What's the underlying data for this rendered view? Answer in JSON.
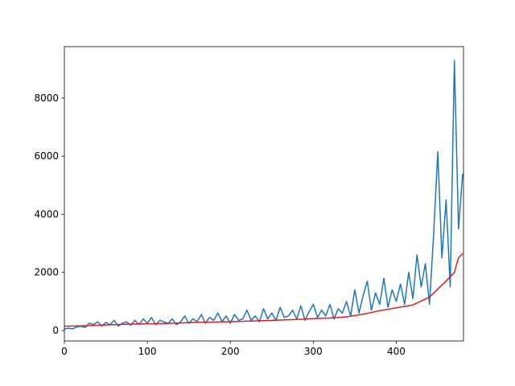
{
  "chart_data": {
    "type": "line",
    "xlim": [
      0,
      481
    ],
    "ylim": [
      -360,
      9770
    ],
    "xticks": [
      0,
      100,
      200,
      300,
      400
    ],
    "yticks": [
      0,
      2000,
      4000,
      6000,
      8000
    ],
    "grid": false,
    "series": [
      {
        "color": "#1f77b4",
        "x": [
          0,
          5,
          10,
          15,
          20,
          25,
          30,
          35,
          40,
          45,
          50,
          55,
          60,
          65,
          70,
          75,
          80,
          85,
          90,
          95,
          100,
          105,
          110,
          115,
          120,
          125,
          130,
          135,
          140,
          145,
          150,
          155,
          160,
          165,
          170,
          175,
          180,
          185,
          190,
          195,
          200,
          205,
          210,
          215,
          220,
          225,
          230,
          235,
          240,
          245,
          250,
          255,
          260,
          265,
          270,
          275,
          280,
          285,
          290,
          295,
          300,
          305,
          310,
          315,
          320,
          325,
          330,
          335,
          340,
          345,
          350,
          355,
          360,
          365,
          370,
          375,
          380,
          385,
          390,
          395,
          400,
          405,
          410,
          415,
          420,
          425,
          430,
          435,
          440,
          445,
          450,
          455,
          460,
          465,
          470,
          475,
          480
        ],
        "values": [
          50,
          80,
          60,
          120,
          150,
          100,
          250,
          200,
          300,
          150,
          280,
          200,
          350,
          150,
          250,
          300,
          180,
          350,
          200,
          400,
          250,
          450,
          200,
          350,
          300,
          250,
          400,
          200,
          300,
          500,
          250,
          400,
          300,
          550,
          250,
          450,
          350,
          600,
          300,
          500,
          250,
          550,
          350,
          400,
          700,
          350,
          500,
          300,
          750,
          400,
          600,
          350,
          800,
          450,
          500,
          700,
          400,
          850,
          350,
          650,
          900,
          450,
          700,
          500,
          900,
          400,
          750,
          600,
          1000,
          500,
          1400,
          600,
          1200,
          1700,
          700,
          1300,
          900,
          1800,
          800,
          1400,
          1000,
          1600,
          900,
          2000,
          1100,
          2600,
          1500,
          2300,
          900,
          3300,
          6150,
          2500,
          4500,
          1500,
          9300,
          3500,
          5400
        ]
      },
      {
        "color": "#e41a1c",
        "x": [
          0,
          20,
          40,
          60,
          80,
          100,
          120,
          140,
          160,
          180,
          200,
          220,
          240,
          260,
          280,
          300,
          320,
          340,
          360,
          380,
          400,
          420,
          440,
          460,
          470,
          475,
          480
        ],
        "values": [
          150,
          160,
          180,
          200,
          220,
          230,
          240,
          260,
          280,
          290,
          300,
          320,
          340,
          360,
          380,
          410,
          430,
          470,
          560,
          680,
          780,
          880,
          1150,
          1700,
          2000,
          2500,
          2650
        ]
      }
    ]
  }
}
